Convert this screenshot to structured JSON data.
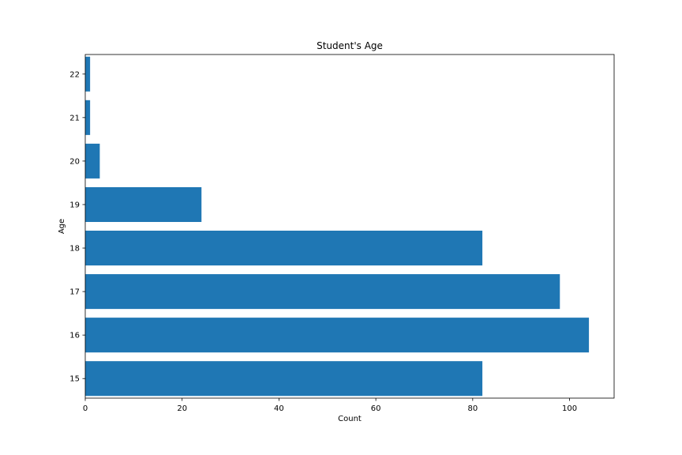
{
  "chart_data": {
    "type": "bar",
    "orientation": "horizontal",
    "title": "Student's Age",
    "xlabel": "Count",
    "ylabel": "Age",
    "categories": [
      "15",
      "16",
      "17",
      "18",
      "19",
      "20",
      "21",
      "22"
    ],
    "values": [
      82,
      104,
      98,
      82,
      24,
      3,
      1,
      1
    ],
    "xlim": [
      0,
      109.2
    ],
    "xticks": [
      0,
      20,
      40,
      60,
      80,
      100
    ],
    "bar_color": "#1f77b4",
    "grid": false,
    "legend": "none"
  }
}
